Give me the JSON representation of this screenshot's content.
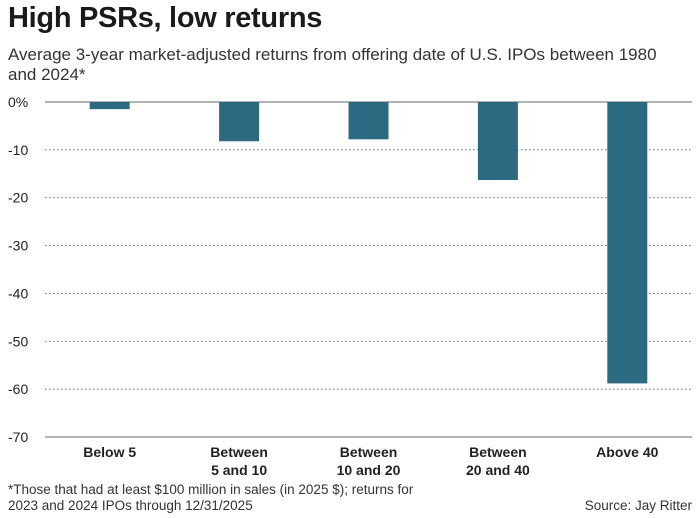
{
  "header": {
    "title": "High PSRs, low returns",
    "subtitle": "Average 3-year market-adjusted returns from offering date of U.S. IPOs between 1980 and 2024*"
  },
  "footer": {
    "footnote": "*Those that had at least $100 million in sales (in 2025 $); returns for 2023 and 2024 IPOs through 12/31/2025",
    "source": "Source: Jay Ritter"
  },
  "colors": {
    "bar": "#2b6a80",
    "grid": "#555555"
  },
  "chart_data": {
    "type": "bar",
    "title": "High PSRs, low returns",
    "subtitle": "Average 3-year market-adjusted returns from offering date of U.S. IPOs between 1980 and 2024*",
    "categories": [
      [
        "Below 5"
      ],
      [
        "Between",
        "5 and 10"
      ],
      [
        "Between",
        "10 and 20"
      ],
      [
        "Between",
        "20 and 40"
      ],
      [
        "Above 40"
      ]
    ],
    "values": [
      -1.5,
      -8.2,
      -7.8,
      -16.3,
      -58.8
    ],
    "yticks": [
      0,
      -10,
      -20,
      -30,
      -40,
      -50,
      -60,
      -70
    ],
    "ytick_labels": [
      "0%",
      "-10",
      "-20",
      "-30",
      "-40",
      "-50",
      "-60",
      "-70"
    ],
    "ylim": [
      -70,
      0
    ],
    "xlabel": "",
    "ylabel": "",
    "grid": true,
    "legend": "none"
  }
}
